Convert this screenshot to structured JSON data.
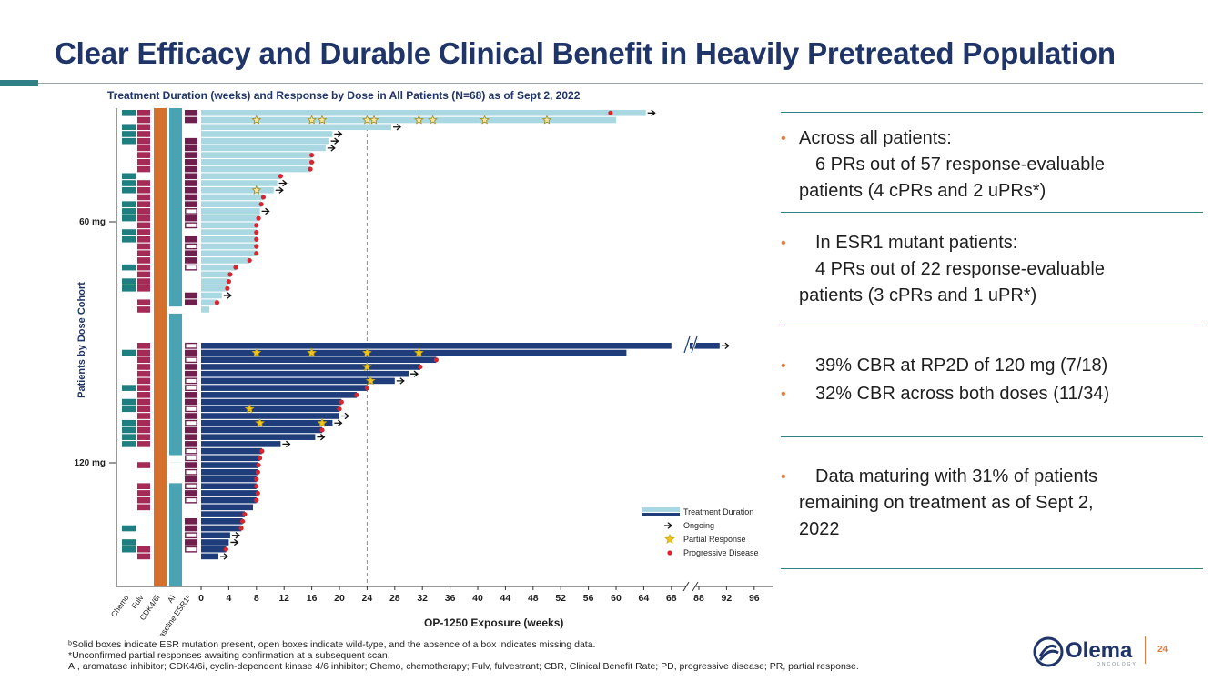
{
  "slide": {
    "title": "Clear Efficacy and Durable Clinical Benefit in Heavily Pretreated Population",
    "page_number": "24",
    "logo_text": "Olema",
    "logo_subtext": "ONCOLOGY"
  },
  "colors": {
    "title": "#1f3468",
    "accent": "#2e7f86",
    "bullet": "#e8793a",
    "bar_60": "#a9d8e3",
    "bar_120": "#1f3d7a",
    "chemo": "#1f7e80",
    "fulv": "#a52a55",
    "cdk": "#d4702b",
    "ai": "#4aa3b3",
    "esr1": "#6e1f4e",
    "star": "#f2c51a",
    "pd": "#d9262e"
  },
  "chart_data": {
    "type": "swimmer",
    "title": "Treatment Duration (weeks) and Response by Dose in All Patients (N=68) as of Sept 2, 2022",
    "xlabel": "OP-1250 Exposure (weeks)",
    "ylabel": "Patients by Dose Cohort",
    "xticks": [
      "0",
      "4",
      "8",
      "12",
      "16",
      "20",
      "24",
      "28",
      "32",
      "36",
      "40",
      "44",
      "48",
      "52",
      "56",
      "60",
      "64",
      "68",
      "88",
      "92",
      "96"
    ],
    "x_break": [
      68,
      88
    ],
    "reference_line_week": 24,
    "column_labels": [
      "Chemo",
      "Fulv",
      "CDK4/6i",
      "AI",
      "Baseline ESR1ᵇ"
    ],
    "legend": [
      "Treatment Duration",
      "Ongoing",
      "Partial Response",
      "Progressive Disease"
    ],
    "cohorts": [
      {
        "name": "60 mg",
        "patients": [
          {
            "duration": 64.3,
            "ongoing": true,
            "pd": 59.2,
            "pr": [],
            "chemo": 1,
            "fulv": 1,
            "cdk": 1,
            "ai": 1,
            "esr1": "solid"
          },
          {
            "duration": 60.0,
            "ongoing": false,
            "pd": null,
            "pr": [
              8,
              16,
              17.5,
              24,
              25,
              31.5,
              33.5,
              41,
              50
            ],
            "chemo": 0,
            "fulv": 1,
            "cdk": 1,
            "ai": 1,
            "esr1": "solid"
          },
          {
            "duration": 27.5,
            "ongoing": true,
            "pd": null,
            "pr": [],
            "chemo": 1,
            "fulv": 1,
            "cdk": 1,
            "ai": 1,
            "esr1": "none"
          },
          {
            "duration": 19.0,
            "ongoing": true,
            "pd": null,
            "pr": [],
            "chemo": 1,
            "fulv": 1,
            "cdk": 1,
            "ai": 1,
            "esr1": "none"
          },
          {
            "duration": 18.5,
            "ongoing": true,
            "pd": null,
            "pr": [],
            "chemo": 1,
            "fulv": 1,
            "cdk": 1,
            "ai": 1,
            "esr1": "solid"
          },
          {
            "duration": 18.0,
            "ongoing": true,
            "pd": null,
            "pr": [],
            "chemo": 0,
            "fulv": 1,
            "cdk": 1,
            "ai": 1,
            "esr1": "solid"
          },
          {
            "duration": 16.0,
            "ongoing": false,
            "pd": 16.0,
            "pr": [],
            "chemo": 0,
            "fulv": 1,
            "cdk": 1,
            "ai": 1,
            "esr1": "solid"
          },
          {
            "duration": 16.0,
            "ongoing": false,
            "pd": 16.0,
            "pr": [],
            "chemo": 0,
            "fulv": 1,
            "cdk": 1,
            "ai": 1,
            "esr1": "solid"
          },
          {
            "duration": 15.8,
            "ongoing": false,
            "pd": 15.8,
            "pr": [],
            "chemo": 0,
            "fulv": 1,
            "cdk": 1,
            "ai": 1,
            "esr1": "solid"
          },
          {
            "duration": 11.5,
            "ongoing": false,
            "pd": 11.5,
            "pr": [],
            "chemo": 1,
            "fulv": 0,
            "cdk": 1,
            "ai": 1,
            "esr1": "solid"
          },
          {
            "duration": 11.0,
            "ongoing": true,
            "pd": null,
            "pr": [],
            "chemo": 1,
            "fulv": 1,
            "cdk": 1,
            "ai": 1,
            "esr1": "solid"
          },
          {
            "duration": 10.5,
            "ongoing": true,
            "pd": null,
            "pr": [
              8
            ],
            "chemo": 1,
            "fulv": 1,
            "cdk": 1,
            "ai": 1,
            "esr1": "solid"
          },
          {
            "duration": 9.0,
            "ongoing": false,
            "pd": 9.0,
            "pr": [],
            "chemo": 0,
            "fulv": 1,
            "cdk": 1,
            "ai": 1,
            "esr1": "solid"
          },
          {
            "duration": 8.7,
            "ongoing": false,
            "pd": 8.7,
            "pr": [],
            "chemo": 1,
            "fulv": 1,
            "cdk": 1,
            "ai": 1,
            "esr1": "solid"
          },
          {
            "duration": 8.5,
            "ongoing": true,
            "pd": null,
            "pr": [],
            "chemo": 1,
            "fulv": 1,
            "cdk": 1,
            "ai": 1,
            "esr1": "open"
          },
          {
            "duration": 8.3,
            "ongoing": false,
            "pd": 8.3,
            "pr": [],
            "chemo": 1,
            "fulv": 1,
            "cdk": 1,
            "ai": 1,
            "esr1": "solid"
          },
          {
            "duration": 8.0,
            "ongoing": false,
            "pd": 8.0,
            "pr": [],
            "chemo": 0,
            "fulv": 1,
            "cdk": 1,
            "ai": 1,
            "esr1": "open"
          },
          {
            "duration": 8.0,
            "ongoing": false,
            "pd": 8.0,
            "pr": [],
            "chemo": 1,
            "fulv": 1,
            "cdk": 1,
            "ai": 1,
            "esr1": "none"
          },
          {
            "duration": 8.0,
            "ongoing": false,
            "pd": 8.0,
            "pr": [],
            "chemo": 1,
            "fulv": 1,
            "cdk": 1,
            "ai": 1,
            "esr1": "solid"
          },
          {
            "duration": 8.0,
            "ongoing": false,
            "pd": 8.0,
            "pr": [],
            "chemo": 0,
            "fulv": 1,
            "cdk": 1,
            "ai": 1,
            "esr1": "open"
          },
          {
            "duration": 8.0,
            "ongoing": false,
            "pd": 8.0,
            "pr": [],
            "chemo": 0,
            "fulv": 1,
            "cdk": 1,
            "ai": 1,
            "esr1": "solid"
          },
          {
            "duration": 7.0,
            "ongoing": false,
            "pd": 7.0,
            "pr": [],
            "chemo": 0,
            "fulv": 1,
            "cdk": 1,
            "ai": 1,
            "esr1": "solid"
          },
          {
            "duration": 5.0,
            "ongoing": false,
            "pd": 5.0,
            "pr": [],
            "chemo": 1,
            "fulv": 1,
            "cdk": 1,
            "ai": 1,
            "esr1": "open"
          },
          {
            "duration": 4.2,
            "ongoing": false,
            "pd": 4.2,
            "pr": [],
            "chemo": 0,
            "fulv": 1,
            "cdk": 1,
            "ai": 1,
            "esr1": "none"
          },
          {
            "duration": 4.0,
            "ongoing": false,
            "pd": 4.0,
            "pr": [],
            "chemo": 1,
            "fulv": 1,
            "cdk": 1,
            "ai": 1,
            "esr1": "none"
          },
          {
            "duration": 3.8,
            "ongoing": false,
            "pd": 3.8,
            "pr": [],
            "chemo": 1,
            "fulv": 1,
            "cdk": 1,
            "ai": 1,
            "esr1": "none"
          },
          {
            "duration": 3.0,
            "ongoing": true,
            "pd": null,
            "pr": [],
            "chemo": 0,
            "fulv": 0,
            "cdk": 1,
            "ai": 1,
            "esr1": "solid"
          },
          {
            "duration": 2.3,
            "ongoing": false,
            "pd": 2.3,
            "pr": [],
            "chemo": 0,
            "fulv": 1,
            "cdk": 1,
            "ai": 1,
            "esr1": "solid"
          },
          {
            "duration": 1.2,
            "ongoing": false,
            "pd": null,
            "pr": [],
            "chemo": 0,
            "fulv": 1,
            "cdk": 1,
            "ai": 0,
            "esr1": "none"
          }
        ]
      },
      {
        "name": "120 mg",
        "patients": [
          {
            "duration": 91.0,
            "ongoing": true,
            "pd": null,
            "pr": [],
            "chemo": 0,
            "fulv": 1,
            "cdk": 1,
            "ai": 1,
            "esr1": "open"
          },
          {
            "duration": 61.5,
            "ongoing": false,
            "pd": null,
            "pr": [
              8,
              16,
              24,
              31.5
            ],
            "chemo": 1,
            "fulv": 1,
            "cdk": 1,
            "ai": 1,
            "esr1": "solid"
          },
          {
            "duration": 34.0,
            "ongoing": false,
            "pd": 34.0,
            "pr": [],
            "chemo": 0,
            "fulv": 1,
            "cdk": 1,
            "ai": 1,
            "esr1": "open"
          },
          {
            "duration": 31.7,
            "ongoing": false,
            "pd": 31.7,
            "pr": [
              24
            ],
            "chemo": 0,
            "fulv": 1,
            "cdk": 1,
            "ai": 1,
            "esr1": "solid"
          },
          {
            "duration": 30.0,
            "ongoing": true,
            "pd": null,
            "pr": [],
            "chemo": 0,
            "fulv": 1,
            "cdk": 1,
            "ai": 1,
            "esr1": "solid"
          },
          {
            "duration": 28.0,
            "ongoing": true,
            "pd": null,
            "pr": [
              24.5
            ],
            "chemo": 0,
            "fulv": 1,
            "cdk": 1,
            "ai": 1,
            "esr1": "open"
          },
          {
            "duration": 24.0,
            "ongoing": false,
            "pd": 24.0,
            "pr": [],
            "chemo": 1,
            "fulv": 1,
            "cdk": 1,
            "ai": 1,
            "esr1": "open"
          },
          {
            "duration": 22.5,
            "ongoing": false,
            "pd": 22.5,
            "pr": [],
            "chemo": 0,
            "fulv": 1,
            "cdk": 1,
            "ai": 1,
            "esr1": "solid"
          },
          {
            "duration": 20.3,
            "ongoing": false,
            "pd": 20.3,
            "pr": [],
            "chemo": 1,
            "fulv": 1,
            "cdk": 1,
            "ai": 1,
            "esr1": "solid"
          },
          {
            "duration": 20.0,
            "ongoing": false,
            "pd": 20.0,
            "pr": [
              7
            ],
            "chemo": 1,
            "fulv": 1,
            "cdk": 1,
            "ai": 1,
            "esr1": "open"
          },
          {
            "duration": 20.0,
            "ongoing": true,
            "pd": null,
            "pr": [],
            "chemo": 0,
            "fulv": 1,
            "cdk": 1,
            "ai": 1,
            "esr1": "solid"
          },
          {
            "duration": 19.0,
            "ongoing": true,
            "pd": null,
            "pr": [
              8.5,
              17.5
            ],
            "chemo": 1,
            "fulv": 1,
            "cdk": 1,
            "ai": 1,
            "esr1": "open"
          },
          {
            "duration": 17.5,
            "ongoing": false,
            "pd": 17.5,
            "pr": [],
            "chemo": 1,
            "fulv": 1,
            "cdk": 1,
            "ai": 1,
            "esr1": "solid"
          },
          {
            "duration": 16.5,
            "ongoing": true,
            "pd": null,
            "pr": [],
            "chemo": 1,
            "fulv": 1,
            "cdk": 1,
            "ai": 1,
            "esr1": "solid"
          },
          {
            "duration": 11.5,
            "ongoing": true,
            "pd": null,
            "pr": [],
            "chemo": 1,
            "fulv": 1,
            "cdk": 1,
            "ai": 1,
            "esr1": "solid"
          },
          {
            "duration": 8.8,
            "ongoing": false,
            "pd": 8.8,
            "pr": [],
            "chemo": 0,
            "fulv": 0,
            "cdk": 1,
            "ai": 1,
            "esr1": "open"
          },
          {
            "duration": 8.5,
            "ongoing": false,
            "pd": 8.5,
            "pr": [],
            "chemo": 0,
            "fulv": 0,
            "cdk": 1,
            "ai": 0,
            "esr1": "open"
          },
          {
            "duration": 8.3,
            "ongoing": false,
            "pd": 8.3,
            "pr": [],
            "chemo": 0,
            "fulv": 1,
            "cdk": 1,
            "ai": 0,
            "esr1": "solid"
          },
          {
            "duration": 8.2,
            "ongoing": false,
            "pd": 8.2,
            "pr": [],
            "chemo": 0,
            "fulv": 0,
            "cdk": 1,
            "ai": 0,
            "esr1": "open"
          },
          {
            "duration": 8.0,
            "ongoing": false,
            "pd": 8.0,
            "pr": [],
            "chemo": 0,
            "fulv": 0,
            "cdk": 1,
            "ai": 0,
            "esr1": "solid"
          },
          {
            "duration": 8.0,
            "ongoing": false,
            "pd": 8.0,
            "pr": [],
            "chemo": 0,
            "fulv": 1,
            "cdk": 1,
            "ai": 1,
            "esr1": "open"
          },
          {
            "duration": 8.2,
            "ongoing": false,
            "pd": 8.2,
            "pr": [],
            "chemo": 0,
            "fulv": 1,
            "cdk": 1,
            "ai": 1,
            "esr1": "solid"
          },
          {
            "duration": 8.0,
            "ongoing": false,
            "pd": 8.0,
            "pr": [],
            "chemo": 0,
            "fulv": 1,
            "cdk": 1,
            "ai": 1,
            "esr1": "open"
          },
          {
            "duration": 7.5,
            "ongoing": false,
            "pd": null,
            "pr": [],
            "chemo": 0,
            "fulv": 1,
            "cdk": 1,
            "ai": 1,
            "esr1": "none"
          },
          {
            "duration": 6.3,
            "ongoing": false,
            "pd": 6.3,
            "pr": [],
            "chemo": 0,
            "fulv": 0,
            "cdk": 1,
            "ai": 1,
            "esr1": "none"
          },
          {
            "duration": 6.0,
            "ongoing": false,
            "pd": 6.0,
            "pr": [],
            "chemo": 0,
            "fulv": 0,
            "cdk": 1,
            "ai": 1,
            "esr1": "solid"
          },
          {
            "duration": 5.8,
            "ongoing": false,
            "pd": 5.8,
            "pr": [],
            "chemo": 1,
            "fulv": 0,
            "cdk": 1,
            "ai": 1,
            "esr1": "solid"
          },
          {
            "duration": 4.2,
            "ongoing": true,
            "pd": null,
            "pr": [],
            "chemo": 0,
            "fulv": 0,
            "cdk": 1,
            "ai": 1,
            "esr1": "open"
          },
          {
            "duration": 4.0,
            "ongoing": true,
            "pd": null,
            "pr": [],
            "chemo": 1,
            "fulv": 0,
            "cdk": 1,
            "ai": 1,
            "esr1": "solid"
          },
          {
            "duration": 3.6,
            "ongoing": false,
            "pd": 3.6,
            "pr": [],
            "chemo": 1,
            "fulv": 1,
            "cdk": 1,
            "ai": 1,
            "esr1": "open"
          },
          {
            "duration": 2.5,
            "ongoing": true,
            "pd": null,
            "pr": [],
            "chemo": 0,
            "fulv": 1,
            "cdk": 1,
            "ai": 1,
            "esr1": "none"
          }
        ]
      }
    ]
  },
  "bullets": [
    {
      "lead": "Across all patients:",
      "rest": [
        "6 PRs out of 57 response-evaluable",
        "patients (4 cPRs and 2 uPRs*)"
      ]
    },
    {
      "lead": "In ESR1 mutant patients:",
      "rest": [
        "4 PRs out of 22 response-evaluable",
        "patients (3 cPRs and 1 uPR*)"
      ]
    },
    {
      "lead": "39% CBR at RP2D of 120 mg (7/18)",
      "rest": []
    },
    {
      "lead": "32% CBR across both doses (11/34)",
      "rest": []
    },
    {
      "lead": "Data maturing with 31% of patients",
      "rest": [
        "remaining on treatment as of Sept 2,",
        "2022"
      ]
    }
  ],
  "footnotes": [
    "ᵇSolid boxes indicate ESR mutation present, open boxes indicate wild-type, and the absence of a box indicates missing data.",
    "*Unconfirmed partial responses awaiting confirmation at a subsequent scan.",
    "AI, aromatase inhibitor; CDK4/6i, cyclin-dependent kinase 4/6 inhibitor; Chemo, chemotherapy; Fulv, fulvestrant; CBR, Clinical Benefit Rate; PD, progressive disease; PR, partial response."
  ]
}
